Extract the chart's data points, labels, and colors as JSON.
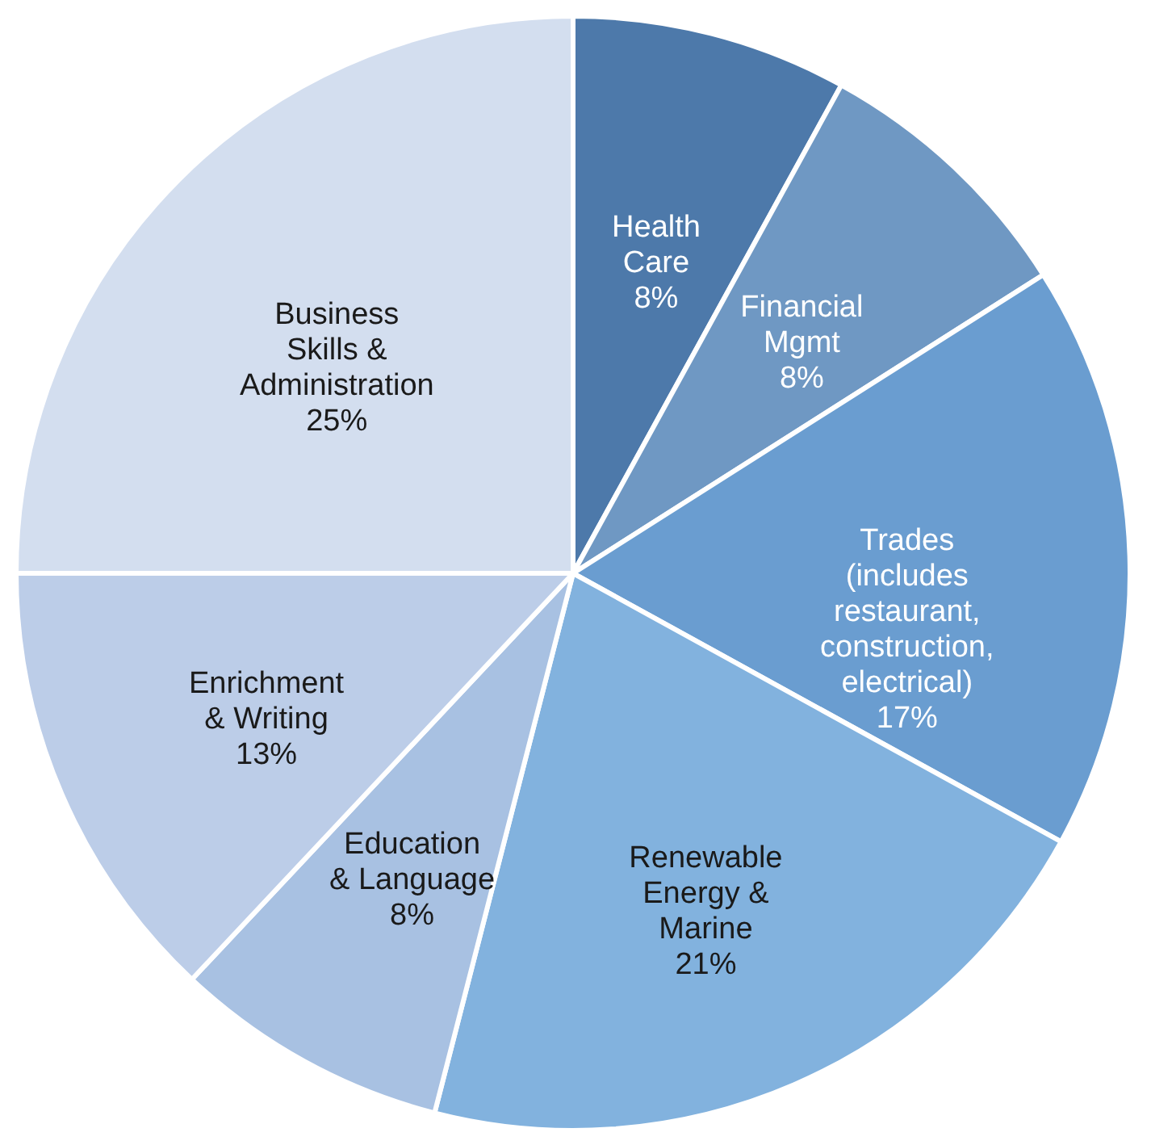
{
  "chart_data": {
    "type": "pie",
    "categories": [
      "Health Care",
      "Financial Mgmt",
      "Trades (includes restaurant, construction, electrical)",
      "Renewable Energy & Marine",
      "Education & Language",
      "Enrichment & Writing",
      "Business Skills & Administration"
    ],
    "values": [
      8,
      8,
      17,
      21,
      8,
      13,
      25
    ],
    "value_labels": [
      "8%",
      "8%",
      "17%",
      "21%",
      "8%",
      "13%",
      "25%"
    ],
    "colors": [
      "#4d79aa",
      "#6f98c3",
      "#6a9dd0",
      "#82b2de",
      "#a8c1e2",
      "#bccde8",
      "#d3deef"
    ]
  }
}
